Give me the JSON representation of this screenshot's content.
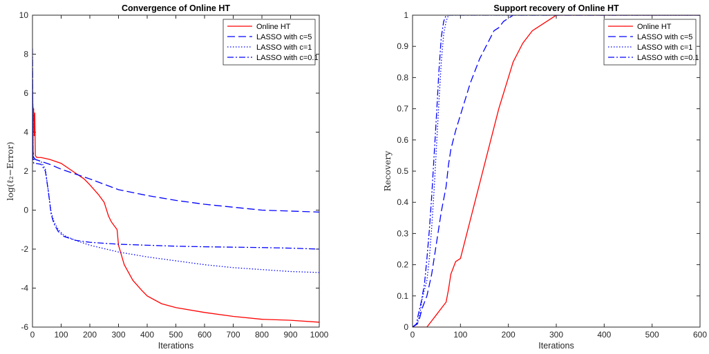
{
  "chart_data": [
    {
      "type": "line",
      "title": "Convergence of Online HT",
      "xlabel": "Iterations",
      "ylabel": "log(ℓ₂−Error)",
      "xlim": [
        0,
        1000
      ],
      "ylim": [
        -6,
        10
      ],
      "xticks": [
        0,
        100,
        200,
        300,
        400,
        500,
        600,
        700,
        800,
        900,
        1000
      ],
      "yticks": [
        -6,
        -4,
        -2,
        0,
        2,
        4,
        6,
        8,
        10
      ],
      "grid": false,
      "legend_position": "top-right",
      "series": [
        {
          "name": "Online HT",
          "color": "#ff0000",
          "style": "solid",
          "x": [
            0,
            2,
            4,
            6,
            8,
            10,
            15,
            30,
            60,
            100,
            140,
            180,
            200,
            230,
            250,
            265,
            275,
            285,
            295,
            300,
            320,
            350,
            380,
            400,
            450,
            500,
            600,
            700,
            800,
            900,
            1000
          ],
          "y": [
            5.6,
            5.2,
            5.2,
            3.8,
            5.0,
            2.8,
            2.7,
            2.7,
            2.6,
            2.4,
            2.0,
            1.6,
            1.3,
            0.8,
            0.4,
            -0.3,
            -0.6,
            -0.8,
            -1.0,
            -1.8,
            -2.8,
            -3.6,
            -4.1,
            -4.4,
            -4.8,
            -5.0,
            -5.25,
            -5.45,
            -5.6,
            -5.65,
            -5.75
          ]
        },
        {
          "name": "LASSO with c=5",
          "color": "#0000ff",
          "style": "dashed",
          "x": [
            0,
            2,
            5,
            10,
            30,
            60,
            100,
            200,
            300,
            400,
            500,
            600,
            700,
            800,
            900,
            1000
          ],
          "y": [
            7.8,
            3.0,
            2.7,
            2.6,
            2.5,
            2.35,
            2.1,
            1.6,
            1.05,
            0.75,
            0.5,
            0.3,
            0.15,
            0.0,
            -0.05,
            -0.1
          ]
        },
        {
          "name": "LASSO with c=1",
          "color": "#0000ff",
          "style": "dotted",
          "x": [
            0,
            2,
            5,
            10,
            30,
            45,
            55,
            65,
            75,
            90,
            110,
            150,
            200,
            300,
            400,
            500,
            600,
            700,
            800,
            900,
            1000
          ],
          "y": [
            8.0,
            3.0,
            2.6,
            2.6,
            2.5,
            2.1,
            1.0,
            -0.1,
            -0.6,
            -1.0,
            -1.3,
            -1.55,
            -1.8,
            -2.15,
            -2.4,
            -2.6,
            -2.8,
            -2.95,
            -3.05,
            -3.15,
            -3.2
          ]
        },
        {
          "name": "LASSO with c=0.1",
          "color": "#0000ff",
          "style": "dashdot",
          "x": [
            0,
            2,
            5,
            10,
            30,
            45,
            55,
            65,
            75,
            90,
            110,
            150,
            200,
            300,
            400,
            500,
            600,
            700,
            800,
            900,
            1000
          ],
          "y": [
            8.3,
            2.5,
            2.4,
            2.4,
            2.35,
            2.0,
            1.0,
            -0.2,
            -0.7,
            -1.1,
            -1.35,
            -1.55,
            -1.65,
            -1.75,
            -1.8,
            -1.85,
            -1.88,
            -1.9,
            -1.92,
            -1.95,
            -2.0
          ]
        }
      ]
    },
    {
      "type": "line",
      "title": "Support recovery of Online HT",
      "xlabel": "Iterations",
      "ylabel": "Recovery",
      "xlim": [
        0,
        600
      ],
      "ylim": [
        0,
        1
      ],
      "xticks": [
        0,
        100,
        200,
        300,
        400,
        500,
        600
      ],
      "yticks": [
        0,
        0.1,
        0.2,
        0.3,
        0.4,
        0.5,
        0.6,
        0.7,
        0.8,
        0.9,
        1
      ],
      "grid": false,
      "legend_position": "top-right",
      "series": [
        {
          "name": "Online HT",
          "color": "#ff0000",
          "style": "solid",
          "x": [
            0,
            10,
            20,
            25,
            30,
            40,
            50,
            60,
            70,
            75,
            80,
            90,
            100,
            110,
            120,
            130,
            140,
            150,
            160,
            170,
            180,
            190,
            200,
            210,
            220,
            230,
            240,
            250,
            260,
            270,
            280,
            290,
            300,
            600
          ],
          "y": [
            0,
            0,
            0,
            0,
            0,
            0.02,
            0.04,
            0.06,
            0.08,
            0.12,
            0.17,
            0.21,
            0.22,
            0.28,
            0.34,
            0.4,
            0.46,
            0.52,
            0.58,
            0.64,
            0.7,
            0.75,
            0.8,
            0.85,
            0.88,
            0.91,
            0.93,
            0.95,
            0.96,
            0.97,
            0.98,
            0.99,
            1.0,
            1.0
          ]
        },
        {
          "name": "LASSO with c=5",
          "color": "#0000ff",
          "style": "dashed",
          "x": [
            0,
            10,
            15,
            20,
            30,
            40,
            50,
            60,
            70,
            75,
            80,
            90,
            100,
            110,
            120,
            130,
            140,
            150,
            160,
            170,
            180,
            190,
            200,
            210,
            220,
            600
          ],
          "y": [
            0,
            0.01,
            0.03,
            0.06,
            0.1,
            0.17,
            0.27,
            0.37,
            0.45,
            0.52,
            0.57,
            0.63,
            0.68,
            0.73,
            0.78,
            0.82,
            0.86,
            0.89,
            0.92,
            0.95,
            0.96,
            0.98,
            0.99,
            1.0,
            1.0,
            1.0
          ]
        },
        {
          "name": "LASSO with c=1",
          "color": "#0000ff",
          "style": "dotted",
          "x": [
            0,
            10,
            15,
            20,
            30,
            35,
            40,
            45,
            50,
            55,
            60,
            65,
            70,
            75,
            80,
            600
          ],
          "y": [
            0,
            0.01,
            0.04,
            0.09,
            0.15,
            0.22,
            0.32,
            0.44,
            0.58,
            0.72,
            0.85,
            0.94,
            0.98,
            1.0,
            1.0,
            1.0
          ]
        },
        {
          "name": "LASSO with c=0.1",
          "color": "#0000ff",
          "style": "dashdot",
          "x": [
            0,
            8,
            12,
            18,
            25,
            30,
            35,
            40,
            45,
            50,
            55,
            60,
            65,
            70,
            75,
            600
          ],
          "y": [
            0,
            0.01,
            0.04,
            0.08,
            0.14,
            0.22,
            0.31,
            0.42,
            0.55,
            0.68,
            0.82,
            0.93,
            0.98,
            1.0,
            1.0,
            1.0
          ]
        }
      ]
    }
  ]
}
